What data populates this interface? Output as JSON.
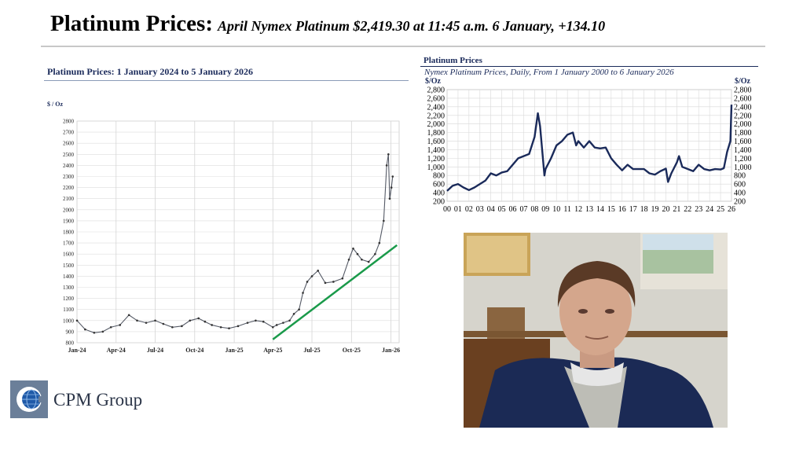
{
  "slide": {
    "title_main": "Platinum Prices:",
    "title_sub": "April Nymex Platinum $2,419.30 at 11:45 a.m. 6 January, +134.10"
  },
  "logo": {
    "text": "CPM Group",
    "icon": "globe-icon"
  },
  "colors": {
    "navy": "#1a2a5a",
    "trend_green": "#1a9a4a",
    "grid": "#d0d0d0"
  },
  "chart_data": [
    {
      "type": "line",
      "title": "Platinum Prices: 1 January 2024 to 5 January 2026",
      "ylabel": "$ / Oz",
      "ylim": [
        800,
        2800
      ],
      "yticks": [
        800,
        900,
        1000,
        1100,
        1200,
        1300,
        1400,
        1500,
        1600,
        1700,
        1800,
        1900,
        2000,
        2100,
        2200,
        2300,
        2400,
        2500,
        2600,
        2700,
        2800
      ],
      "xticks": [
        "Jan-24",
        "Apr-24",
        "Jul-24",
        "Oct-24",
        "Jan-25",
        "Apr-25",
        "Jul-25",
        "Oct-25",
        "Jan-26"
      ],
      "grid": true,
      "series": [
        {
          "x": [
            "2024-01-01",
            "2024-01-20",
            "2024-02-10",
            "2024-03-01",
            "2024-03-20",
            "2024-04-10",
            "2024-05-01",
            "2024-05-20",
            "2024-06-10",
            "2024-07-01",
            "2024-07-20",
            "2024-08-10",
            "2024-09-01",
            "2024-09-20",
            "2024-10-10",
            "2024-10-25",
            "2024-11-10",
            "2024-12-01",
            "2024-12-20",
            "2025-01-10",
            "2025-02-01",
            "2025-02-20",
            "2025-03-10",
            "2025-04-01",
            "2025-04-10",
            "2025-04-25",
            "2025-05-10",
            "2025-05-20",
            "2025-06-01",
            "2025-06-10",
            "2025-06-20",
            "2025-07-01",
            "2025-07-15",
            "2025-08-01",
            "2025-08-20",
            "2025-09-10",
            "2025-09-25",
            "2025-10-05",
            "2025-10-15",
            "2025-10-25",
            "2025-11-10",
            "2025-11-25",
            "2025-12-05",
            "2025-12-15",
            "2025-12-22",
            "2025-12-26",
            "2025-12-29",
            "2026-01-02",
            "2026-01-05"
          ],
          "values": [
            1000,
            920,
            890,
            900,
            940,
            960,
            1050,
            1000,
            980,
            1000,
            970,
            940,
            950,
            1000,
            1020,
            990,
            960,
            940,
            930,
            950,
            980,
            1000,
            990,
            940,
            960,
            980,
            1000,
            1060,
            1100,
            1250,
            1350,
            1400,
            1450,
            1340,
            1350,
            1380,
            1550,
            1650,
            1600,
            1550,
            1530,
            1600,
            1700,
            1900,
            2400,
            2500,
            2100,
            2200,
            2300
          ]
        }
      ],
      "trendline": {
        "x": [
          "2025-04-01",
          "2026-01-15"
        ],
        "values": [
          830,
          1680
        ]
      }
    },
    {
      "type": "line",
      "title": "Platinum Prices",
      "subtitle": "Nymex Platinum Prices, Daily, From 1 January 2000 to 6 January 2026",
      "ylabel": "$/Oz",
      "ylim": [
        200,
        2800
      ],
      "yticks": [
        200,
        400,
        600,
        800,
        1000,
        1200,
        1400,
        1600,
        1800,
        2000,
        2200,
        2400,
        2600,
        2800
      ],
      "xticks": [
        "00",
        "01",
        "02",
        "03",
        "04",
        "05",
        "06",
        "07",
        "08",
        "09",
        "10",
        "11",
        "12",
        "13",
        "14",
        "15",
        "16",
        "17",
        "18",
        "19",
        "20",
        "21",
        "22",
        "23",
        "24",
        "25",
        "26"
      ],
      "grid": true,
      "series": [
        {
          "x": [
            2000.0,
            2000.5,
            2001.0,
            2001.5,
            2002.0,
            2002.5,
            2003.0,
            2003.5,
            2004.0,
            2004.5,
            2005.0,
            2005.5,
            2006.0,
            2006.5,
            2007.0,
            2007.5,
            2008.0,
            2008.3,
            2008.5,
            2008.9,
            2009.0,
            2009.5,
            2010.0,
            2010.5,
            2011.0,
            2011.5,
            2011.8,
            2012.0,
            2012.5,
            2013.0,
            2013.5,
            2014.0,
            2014.5,
            2015.0,
            2015.5,
            2016.0,
            2016.5,
            2017.0,
            2017.5,
            2018.0,
            2018.5,
            2019.0,
            2019.5,
            2020.0,
            2020.2,
            2020.5,
            2021.0,
            2021.2,
            2021.5,
            2022.0,
            2022.5,
            2023.0,
            2023.5,
            2024.0,
            2024.5,
            2025.0,
            2025.3,
            2025.6,
            2025.9,
            2026.0
          ],
          "values": [
            440,
            560,
            600,
            520,
            460,
            520,
            600,
            680,
            850,
            800,
            870,
            900,
            1050,
            1200,
            1250,
            1300,
            1700,
            2250,
            1950,
            800,
            950,
            1200,
            1500,
            1600,
            1750,
            1800,
            1500,
            1600,
            1450,
            1600,
            1450,
            1430,
            1450,
            1200,
            1050,
            920,
            1050,
            950,
            950,
            950,
            850,
            820,
            900,
            960,
            650,
            850,
            1100,
            1250,
            1000,
            950,
            900,
            1050,
            950,
            920,
            950,
            940,
            970,
            1350,
            1600,
            2450
          ]
        }
      ]
    }
  ]
}
